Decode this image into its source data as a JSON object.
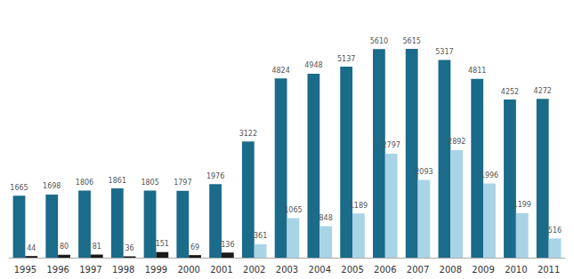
{
  "chart_data": {
    "type": "bar",
    "categories": [
      "1995",
      "1996",
      "1997",
      "1998",
      "1999",
      "2000",
      "2001",
      "2002",
      "2003",
      "2004",
      "2005",
      "2006",
      "2007",
      "2008",
      "2009",
      "2010",
      "2011"
    ],
    "series": [
      {
        "color": "#1B6B8A",
        "values": [
          1665,
          1698,
          1806,
          1861,
          1805,
          1797,
          1976,
          3122,
          4824,
          4948,
          5137,
          5610,
          5615,
          5317,
          4811,
          4252,
          4272
        ]
      },
      {
        "colors": [
          "#1a1a1a",
          "#1a1a1a",
          "#1a1a1a",
          "#1a1a1a",
          "#1a1a1a",
          "#1a1a1a",
          "#1a1a1a",
          "#A8D4E6",
          "#A8D4E6",
          "#A8D4E6",
          "#A8D4E6",
          "#A8D4E6",
          "#A8D4E6",
          "#A8D4E6",
          "#A8D4E6",
          "#A8D4E6",
          "#A8D4E6"
        ],
        "values": [
          44,
          80,
          81,
          36,
          151,
          69,
          136,
          361,
          1065,
          848,
          1189,
          2797,
          2093,
          2892,
          1996,
          1199,
          516
        ]
      }
    ],
    "ylim": [
      0,
      6500
    ],
    "grid": false,
    "data_labels": true,
    "tick_labels": "x"
  }
}
